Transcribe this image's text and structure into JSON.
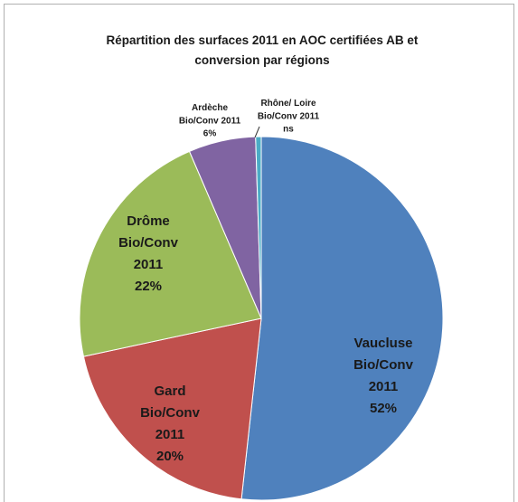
{
  "chart_data": {
    "type": "pie",
    "title": "Répartition des surfaces 2011 en AOC certifiées AB et conversion par régions",
    "categories": [
      "Vaucluse Bio/Conv 2011",
      "Gard Bio/Conv 2011",
      "Drôme Bio/Conv 2011",
      "Ardèche Bio/Conv 2011",
      "Rhône/ Loire Bio/Conv 2011"
    ],
    "values": [
      52,
      20,
      22,
      6,
      0.5
    ],
    "value_labels": [
      "52%",
      "20%",
      "22%",
      "6%",
      "ns"
    ],
    "colors": [
      "#4f81bd",
      "#c0504d",
      "#9bbb59",
      "#8064a2",
      "#4bacc6"
    ]
  }
}
